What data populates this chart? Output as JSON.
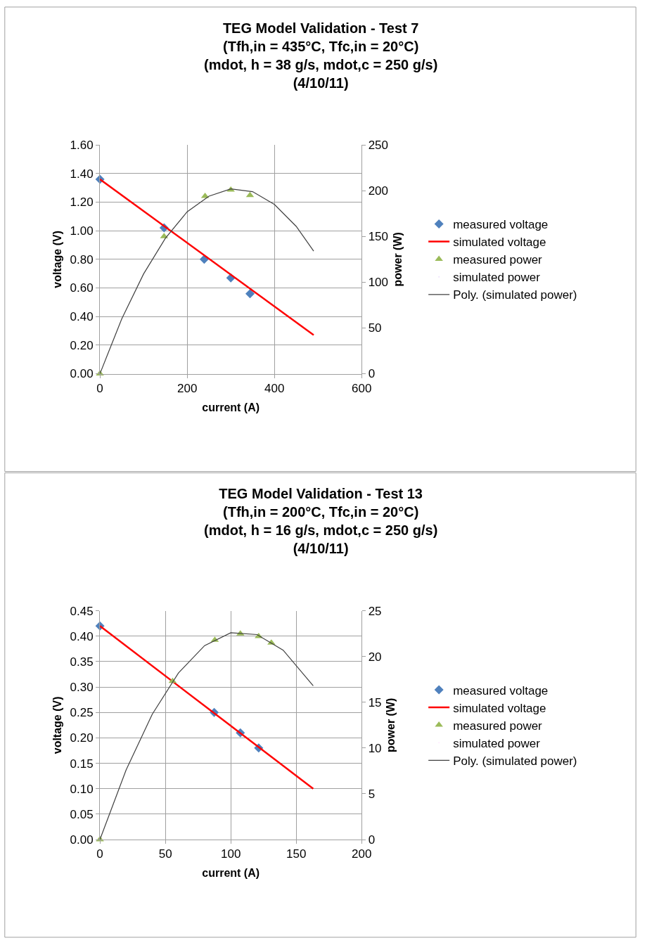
{
  "chart_data": [
    {
      "type": "scatter",
      "title": "TEG Model Validation - Test 7\n(Tfh,in = 435°C, Tfc,in = 20°C)\n(mdot, h = 38 g/s, mdot,c = 250 g/s)\n(4/10/11)",
      "xlabel": "current (A)",
      "ylabel": "voltage (V)",
      "y2label": "power (W)",
      "xlim": [
        0,
        600
      ],
      "xticks": [
        0,
        200,
        400,
        600
      ],
      "ylim": [
        0,
        1.6
      ],
      "yticks": [
        {
          "value": 0,
          "label": "0.00"
        },
        {
          "value": 0.2,
          "label": "0.20"
        },
        {
          "value": 0.4,
          "label": "0.40"
        },
        {
          "value": 0.6,
          "label": "0.60"
        },
        {
          "value": 0.8,
          "label": "0.80"
        },
        {
          "value": 1.0,
          "label": "1.00"
        },
        {
          "value": 1.2,
          "label": "1.20"
        },
        {
          "value": 1.4,
          "label": "1.40"
        },
        {
          "value": 1.6,
          "label": "1.60"
        }
      ],
      "y2lim": [
        0,
        250
      ],
      "y2ticks": [
        0,
        50,
        100,
        150,
        200,
        250
      ],
      "grid": true,
      "legend": "right",
      "series": [
        {
          "name": "measured voltage",
          "marker": "diamond",
          "color": "#4f81bd",
          "x": [
            0,
            147,
            239,
            300,
            344
          ],
          "values": [
            1.36,
            1.02,
            0.8,
            0.67,
            0.56
          ]
        },
        {
          "name": "simulated voltage",
          "type": "line",
          "marker": "none",
          "line_style": "solid",
          "color": "#ff0000",
          "x": [
            0,
            490
          ],
          "values": [
            1.36,
            0.27
          ]
        },
        {
          "name": "measured power",
          "marker": "triangle",
          "color": "#9bbb59",
          "axis": "y2",
          "x": [
            0,
            147,
            241,
            300,
            344
          ],
          "values": [
            0,
            150,
            194,
            201,
            195
          ]
        },
        {
          "name": "simulated power",
          "marker": "none",
          "axis": "y2"
        },
        {
          "name": "Poly. (simulated power)",
          "type": "line",
          "marker": "none",
          "line_style": "solid",
          "color": "#404040",
          "axis": "y2",
          "x": [
            0,
            50,
            100,
            150,
            200,
            250,
            300,
            350,
            400,
            450,
            490
          ],
          "values": [
            0,
            60,
            109,
            148,
            177,
            194,
            202,
            199,
            185,
            161,
            134
          ]
        }
      ]
    },
    {
      "type": "scatter",
      "title": "TEG Model Validation - Test 13\n(Tfh,in = 200°C, Tfc,in = 20°C)\n(mdot, h = 16 g/s, mdot,c = 250 g/s)\n(4/10/11)",
      "xlabel": "current (A)",
      "ylabel": "voltage (V)",
      "y2label": "power (W)",
      "xlim": [
        0,
        200
      ],
      "xticks": [
        0,
        50,
        100,
        150,
        200
      ],
      "ylim": [
        0,
        0.45
      ],
      "yticks": [
        {
          "value": 0,
          "label": "0.00"
        },
        {
          "value": 0.05,
          "label": "0.05"
        },
        {
          "value": 0.1,
          "label": "0.10"
        },
        {
          "value": 0.15,
          "label": "0.15"
        },
        {
          "value": 0.2,
          "label": "0.20"
        },
        {
          "value": 0.25,
          "label": "0.25"
        },
        {
          "value": 0.3,
          "label": "0.30"
        },
        {
          "value": 0.35,
          "label": "0.35"
        },
        {
          "value": 0.4,
          "label": "0.40"
        },
        {
          "value": 0.45,
          "label": "0.45"
        }
      ],
      "y2lim": [
        0,
        25
      ],
      "y2ticks": [
        0,
        5,
        10,
        15,
        20,
        25
      ],
      "grid": true,
      "legend": "right",
      "series": [
        {
          "name": "measured voltage",
          "marker": "diamond",
          "color": "#4f81bd",
          "x": [
            0,
            87.3,
            107.3,
            121.3
          ],
          "values": [
            0.42,
            0.25,
            0.21,
            0.18
          ]
        },
        {
          "name": "simulated voltage",
          "type": "line",
          "marker": "none",
          "line_style": "solid",
          "color": "#ff0000",
          "x": [
            0,
            163
          ],
          "values": [
            0.42,
            0.1
          ]
        },
        {
          "name": "measured power",
          "marker": "triangle",
          "color": "#9bbb59",
          "axis": "y2",
          "x": [
            0,
            55.5,
            87.8,
            107.3,
            121.3,
            131
          ],
          "values": [
            0,
            17.3,
            21.8,
            22.5,
            22.2,
            21.5
          ]
        },
        {
          "name": "simulated power",
          "marker": "none",
          "axis": "y2"
        },
        {
          "name": "Poly. (simulated power)",
          "type": "line",
          "marker": "none",
          "line_style": "solid",
          "color": "#404040",
          "axis": "y2",
          "x": [
            0,
            20,
            40,
            60,
            80,
            100,
            120,
            140,
            163
          ],
          "values": [
            0,
            7.6,
            13.7,
            18.2,
            21.2,
            22.6,
            22.4,
            20.7,
            16.8
          ]
        }
      ]
    }
  ]
}
